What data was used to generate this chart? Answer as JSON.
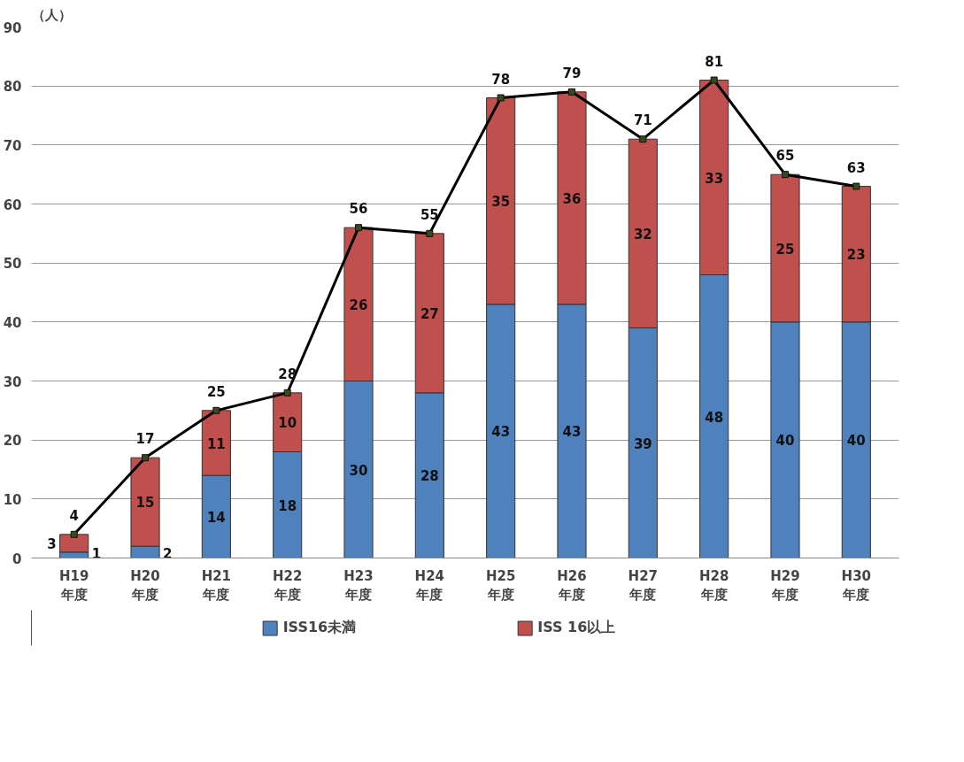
{
  "chart_data": {
    "type": "bar",
    "stacked": true,
    "ylabel": "（人）",
    "categories": [
      "H19\n年度",
      "H20\n年度",
      "H21\n年度",
      "H22\n年度",
      "H23\n年度",
      "H24\n年度",
      "H25\n年度",
      "H26\n年度",
      "H27\n年度",
      "H28\n年度",
      "H29\n年度",
      "H30\n年度"
    ],
    "series": [
      {
        "name": "ISS16未満",
        "color": "#4f81bd",
        "values": [
          1,
          2,
          14,
          18,
          30,
          28,
          43,
          43,
          39,
          48,
          40,
          40
        ]
      },
      {
        "name": "ISS 16以上",
        "color": "#c0504d",
        "values": [
          3,
          15,
          11,
          10,
          26,
          27,
          35,
          36,
          32,
          33,
          25,
          23
        ]
      },
      {
        "type": "line",
        "color": "#000000",
        "marker": "square",
        "values": [
          4,
          17,
          25,
          28,
          56,
          55,
          78,
          79,
          71,
          81,
          65,
          63
        ]
      }
    ],
    "ylim": [
      0,
      90
    ],
    "yticks": [
      0,
      10,
      20,
      30,
      40,
      50,
      60,
      70,
      80,
      90
    ],
    "grid": "y",
    "legend": "bottom",
    "data_labels": true
  }
}
